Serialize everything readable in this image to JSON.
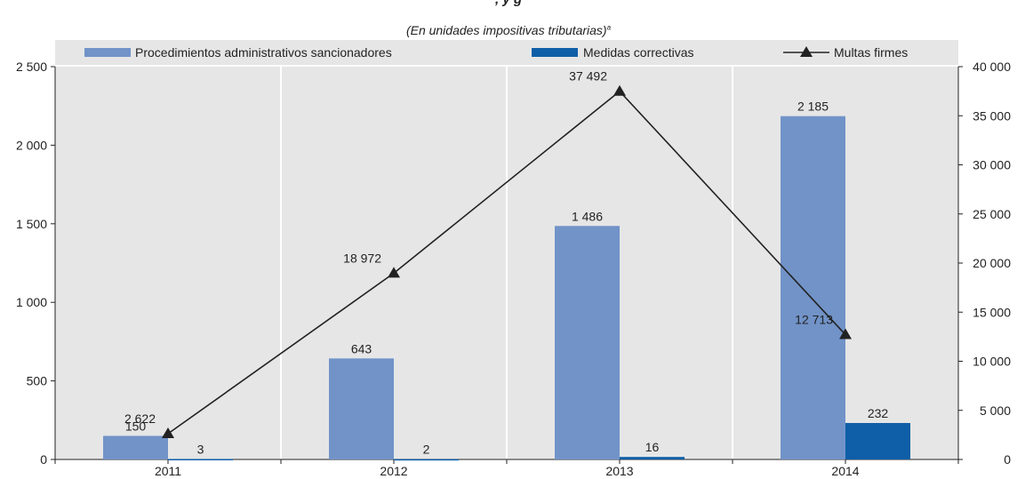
{
  "header": {
    "title_partial": ", y g",
    "subtitle": "(En unidades impositivas tributarias)",
    "subtitle_note": "a"
  },
  "chart_data": {
    "type": "bar",
    "categories": [
      "2011",
      "2012",
      "2013",
      "2014"
    ],
    "series": [
      {
        "name": "Procedimientos administrativos sancionadores",
        "kind": "bar",
        "axis": "left",
        "values": [
          150,
          643,
          1486,
          2185
        ],
        "labels": [
          "150",
          "643",
          "1 486",
          "2 185"
        ],
        "color": "#7193c8"
      },
      {
        "name": "Medidas correctivas",
        "kind": "bar",
        "axis": "left",
        "values": [
          3,
          2,
          16,
          232
        ],
        "labels": [
          "3",
          "2",
          "16",
          "232"
        ],
        "color": "#0f5ea8"
      },
      {
        "name": "Multas firmes",
        "kind": "line",
        "axis": "right",
        "values": [
          2622,
          18972,
          37492,
          12713
        ],
        "labels": [
          "2 622",
          "18 972",
          "37 492",
          "12 713"
        ],
        "color": "#222222"
      }
    ],
    "y_left": {
      "ylim": [
        0,
        2500
      ],
      "ticks": [
        0,
        500,
        1000,
        1500,
        2000,
        2500
      ],
      "tick_labels": [
        "0",
        "500",
        "1 000",
        "1 500",
        "2 000",
        "2 500"
      ]
    },
    "y_right": {
      "ylim": [
        0,
        40000
      ],
      "ticks": [
        0,
        5000,
        10000,
        15000,
        20000,
        25000,
        30000,
        35000,
        40000
      ],
      "tick_labels": [
        "0",
        "5 000",
        "10 000",
        "15 000",
        "20 000",
        "25 000",
        "30 000",
        "35 000",
        "40 000"
      ]
    },
    "legend_position": "top",
    "grid": "vertical",
    "background_color": "#e6e6e6",
    "grid_color": "#ffffff"
  }
}
